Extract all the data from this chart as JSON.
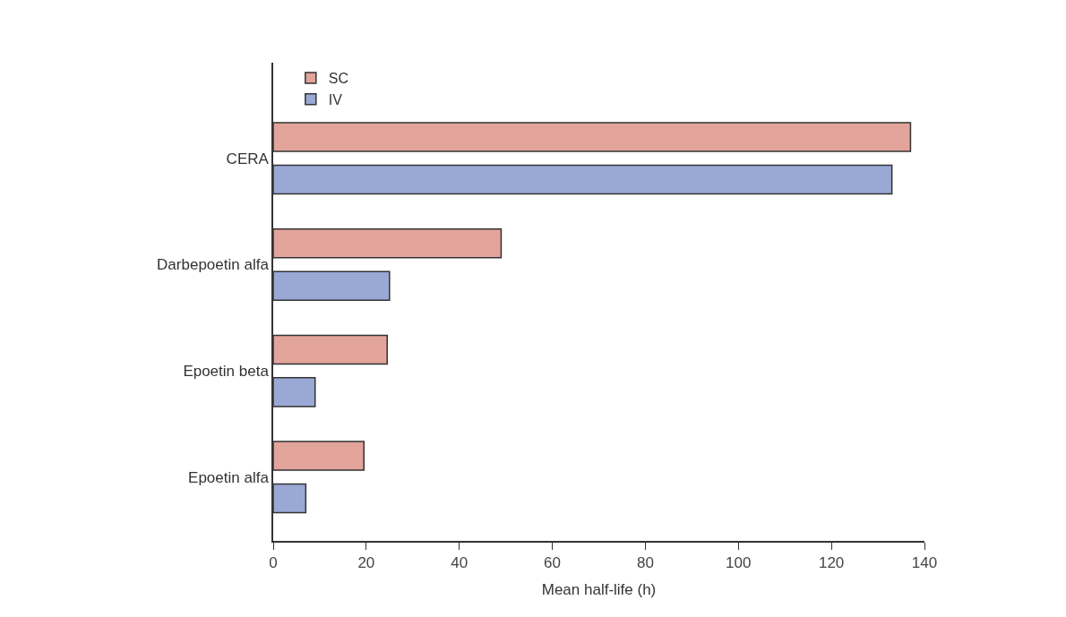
{
  "chart_data": {
    "type": "bar",
    "orientation": "horizontal",
    "categories": [
      "CERA",
      "Darbepoetin alfa",
      "Epoetin beta",
      "Epoetin alfa"
    ],
    "series": [
      {
        "name": "SC",
        "color": "#e3a49c",
        "values": [
          137,
          49,
          24.5,
          19.5
        ]
      },
      {
        "name": "IV",
        "color": "#9aa8d6",
        "values": [
          133,
          25,
          9,
          7
        ]
      }
    ],
    "xlabel": "Mean half-life (h)",
    "xlim": [
      0,
      140
    ],
    "xticks": [
      0,
      20,
      40,
      60,
      80,
      100,
      120,
      140
    ],
    "legend": "top left"
  }
}
